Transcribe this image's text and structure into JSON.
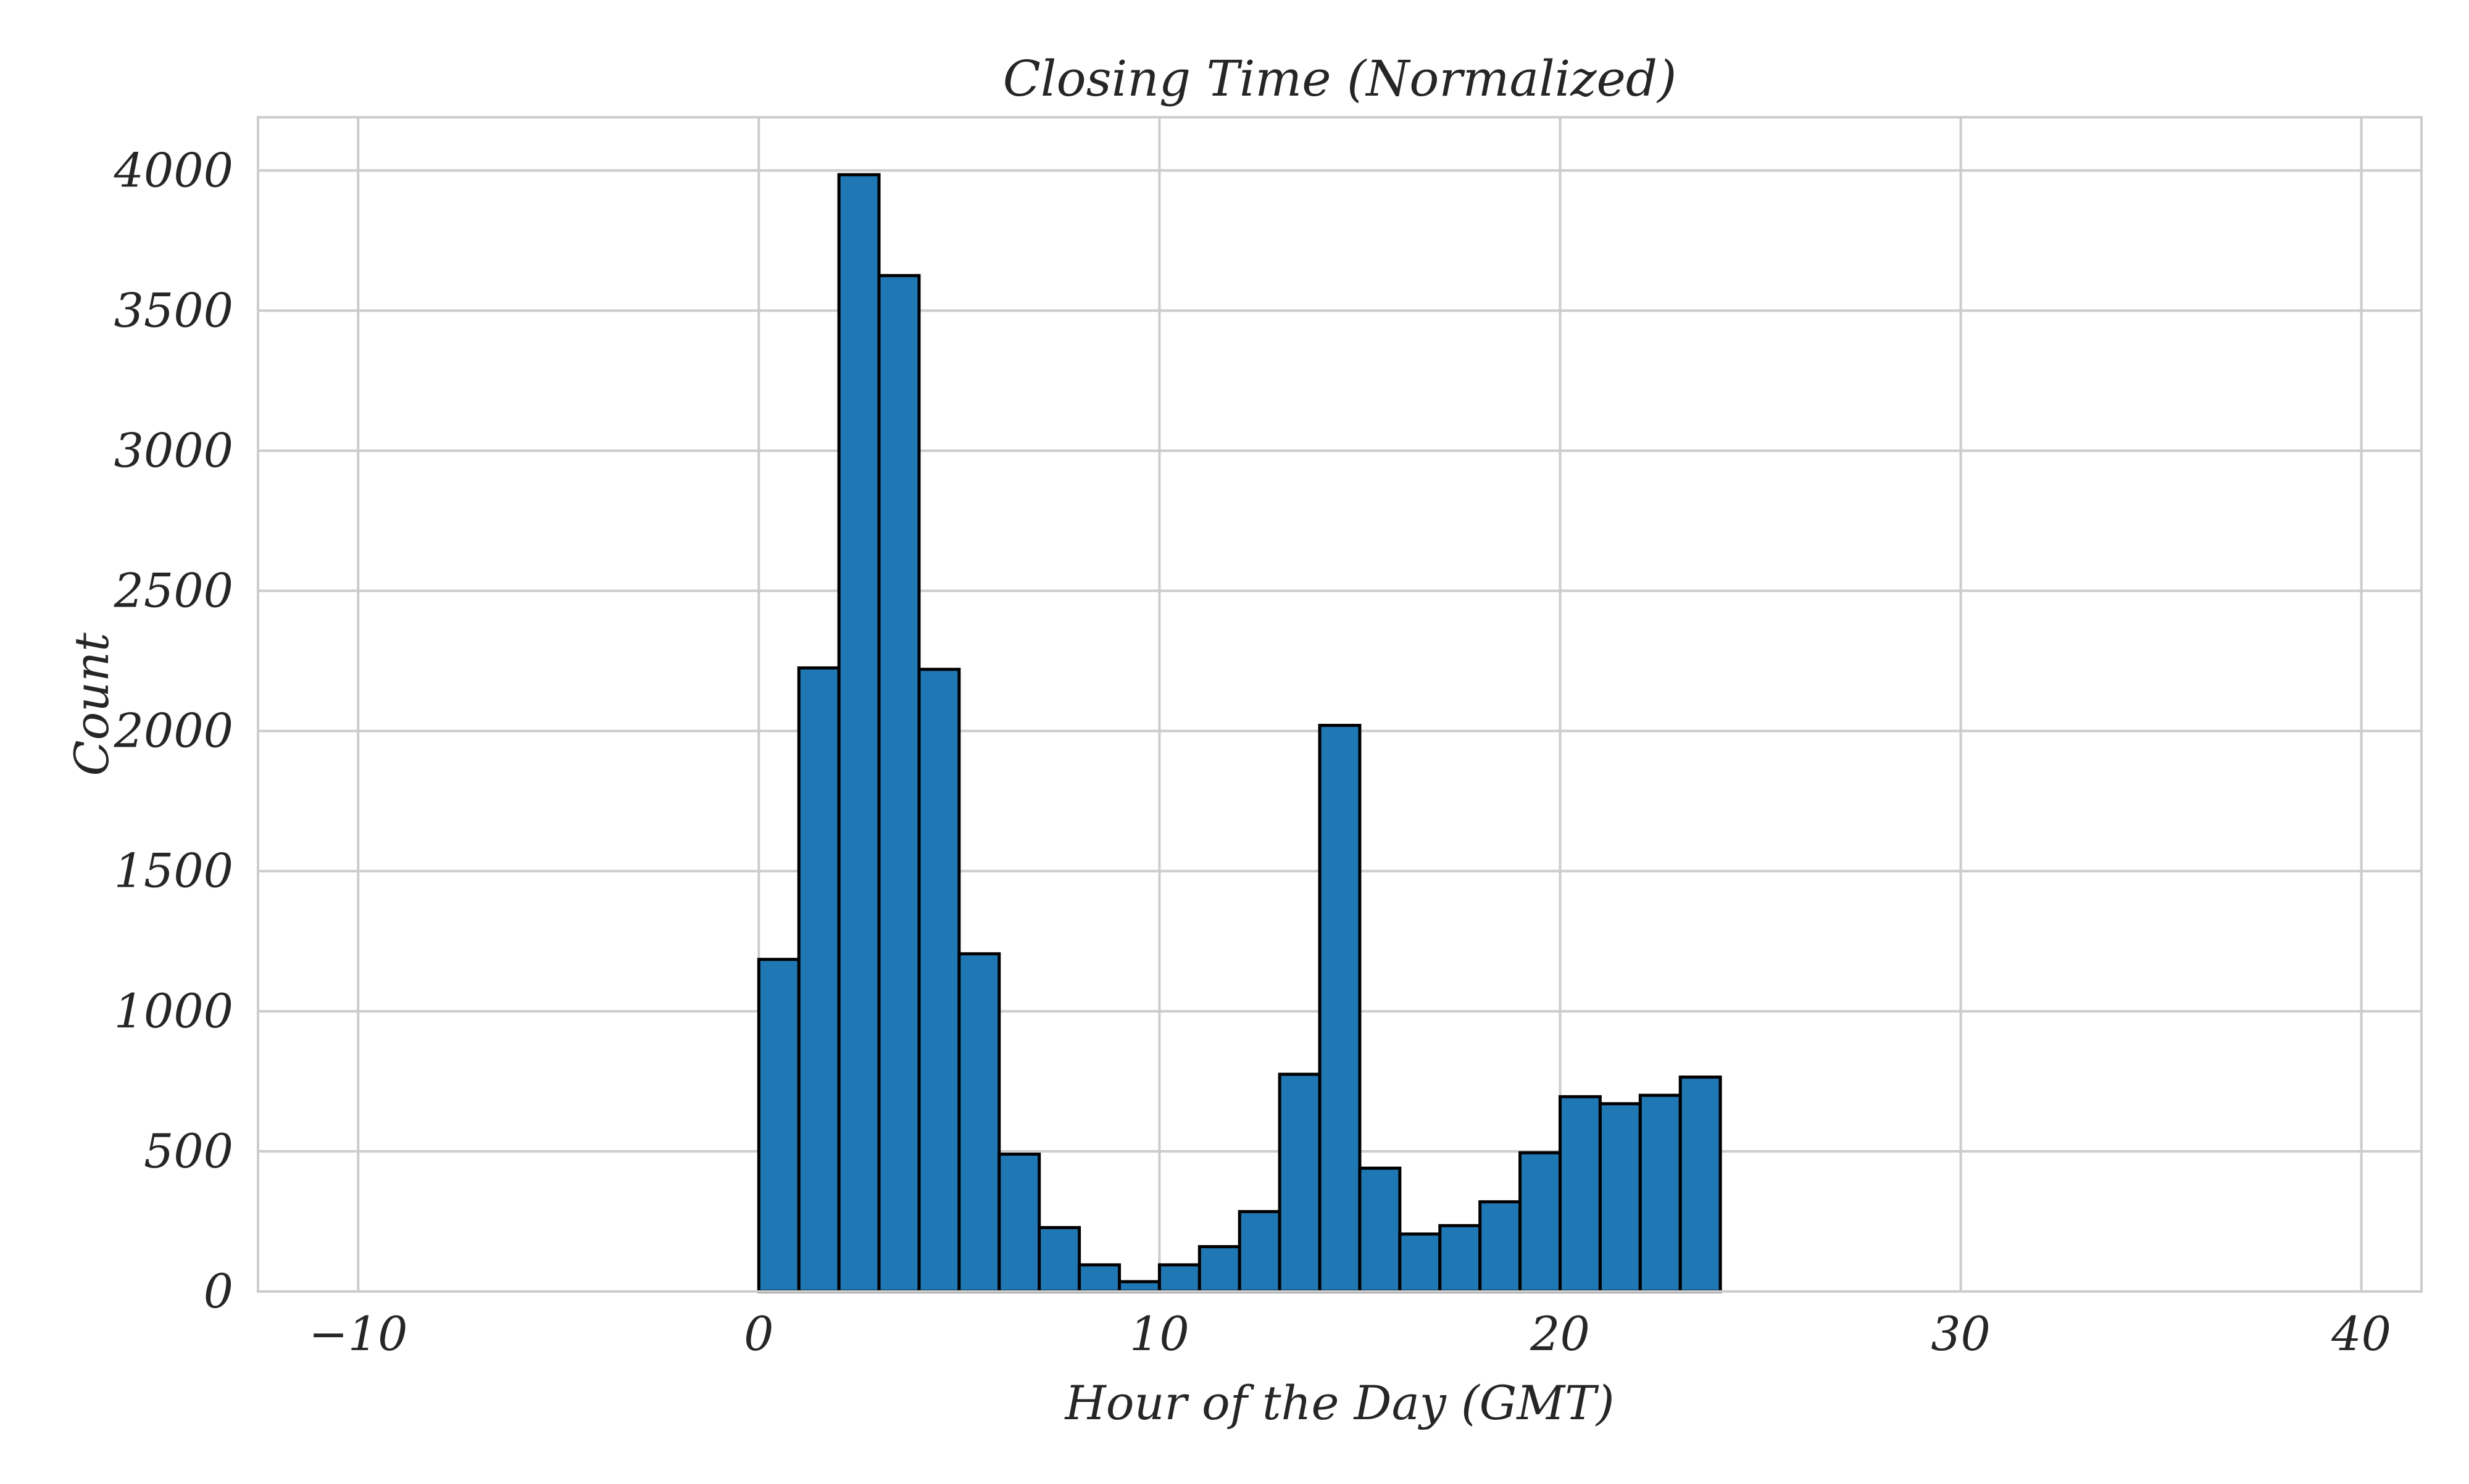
{
  "chart_data": {
    "type": "bar",
    "title": "Closing Time (Normalized)",
    "xlabel": "Hour of the Day (GMT)",
    "ylabel": "Count",
    "xlim": [
      -12.5,
      41.5
    ],
    "ylim": [
      0,
      4190
    ],
    "xticks": [
      -10,
      0,
      10,
      20,
      30,
      40
    ],
    "xtick_labels": [
      "−10",
      "0",
      "10",
      "20",
      "30",
      "40"
    ],
    "yticks": [
      0,
      500,
      1000,
      1500,
      2000,
      2500,
      3000,
      3500,
      4000
    ],
    "ytick_labels": [
      "0",
      "500",
      "1000",
      "1500",
      "2000",
      "2500",
      "3000",
      "3500",
      "4000"
    ],
    "grid": true,
    "bin_start": -10,
    "bin_end": 39,
    "bin_width": 1,
    "x": [
      -10,
      -9,
      -8,
      -7,
      -6,
      -5,
      -4,
      -3,
      -2,
      -1,
      0,
      1,
      2,
      3,
      4,
      5,
      6,
      7,
      8,
      9,
      10,
      11,
      12,
      13,
      14,
      15,
      16,
      17,
      18,
      19,
      20,
      21,
      22,
      23,
      24,
      25,
      26,
      27,
      28,
      29,
      30,
      31,
      32,
      33,
      34,
      35,
      36,
      37,
      38
    ],
    "values": [
      0,
      0,
      0,
      0,
      0,
      0,
      0,
      0,
      0,
      0,
      1185,
      2225,
      3985,
      3625,
      2220,
      1205,
      490,
      228,
      95,
      35,
      95,
      160,
      285,
      775,
      2020,
      440,
      205,
      235,
      320,
      495,
      695,
      670,
      700,
      765,
      0,
      0,
      0,
      0,
      0,
      0,
      0,
      0,
      0,
      0,
      0,
      0,
      0,
      0,
      0
    ],
    "colors": {
      "bar_fill": "#1f77b4",
      "bar_edge": "#000000",
      "grid": "#cccccc",
      "text": "#262626",
      "background": "#ffffff"
    }
  }
}
